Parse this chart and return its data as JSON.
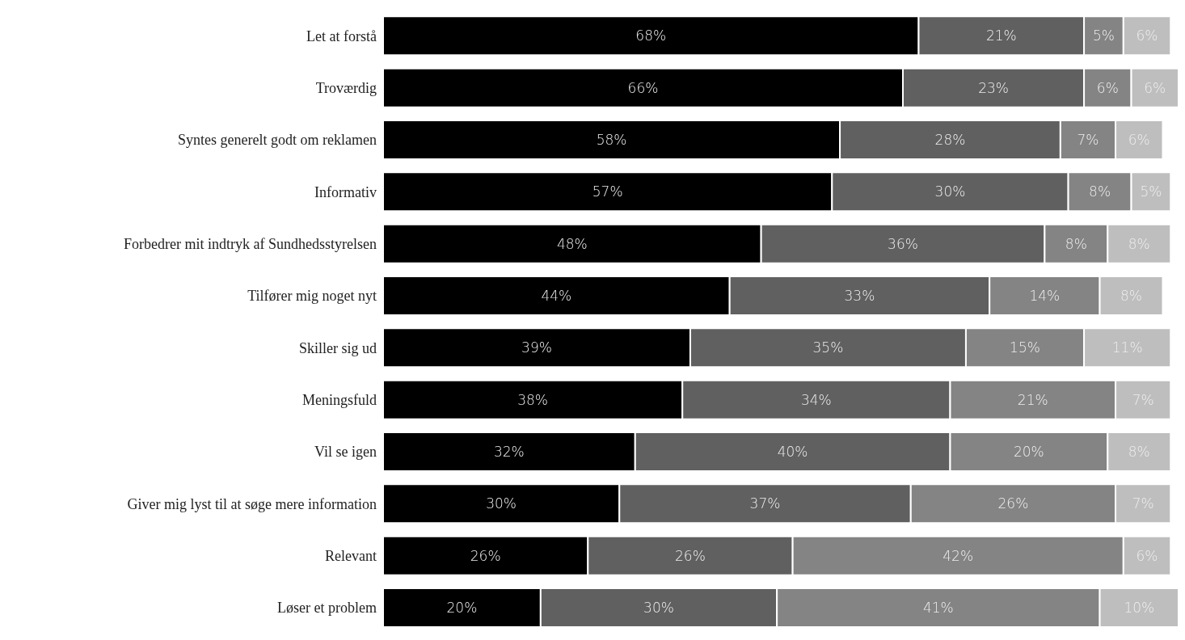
{
  "chart_data": {
    "type": "bar",
    "orientation": "horizontal",
    "stacked": true,
    "grid": false,
    "legend": false,
    "tick_labels": "y",
    "categories": [
      "Let at forstå",
      "Troværdig",
      "Syntes generelt godt om reklamen",
      "Informativ",
      "Forbedrer mit indtryk af Sundhedsstyrelsen",
      "Tilfører mig noget nyt",
      "Skiller sig ud",
      "Meningsfuld",
      "Vil se igen",
      "Giver mig lyst til at søge mere information",
      "Relevant",
      "Løser et problem"
    ],
    "series": [
      {
        "color": "#000000",
        "values": [
          68,
          66,
          58,
          57,
          48,
          44,
          39,
          38,
          32,
          30,
          26,
          20
        ],
        "value_labels": [
          "68%",
          "66%",
          "58%",
          "57%",
          "48%",
          "44%",
          "39%",
          "38%",
          "32%",
          "30%",
          "26%",
          "20%"
        ]
      },
      {
        "color": "#606060",
        "values": [
          21,
          23,
          28,
          30,
          36,
          33,
          35,
          34,
          40,
          37,
          26,
          30
        ],
        "value_labels": [
          "21%",
          "23%",
          "28%",
          "30%",
          "36%",
          "33%",
          "35%",
          "34%",
          "40%",
          "37%",
          "26%",
          "30%"
        ]
      },
      {
        "color": "#848484",
        "values": [
          5,
          6,
          7,
          8,
          8,
          14,
          15,
          21,
          20,
          26,
          42,
          41
        ],
        "value_labels": [
          "5%",
          "6%",
          "7%",
          "8%",
          "8%",
          "14%",
          "15%",
          "21%",
          "20%",
          "26%",
          "42%",
          "41%"
        ]
      },
      {
        "color": "#bebebe",
        "values": [
          6,
          6,
          6,
          5,
          8,
          8,
          11,
          7,
          8,
          7,
          6,
          10
        ],
        "value_labels": [
          "6%",
          "6%",
          "6%",
          "5%",
          "8%",
          "8%",
          "11%",
          "7%",
          "8%",
          "7%",
          "6%",
          "10%"
        ]
      }
    ]
  }
}
